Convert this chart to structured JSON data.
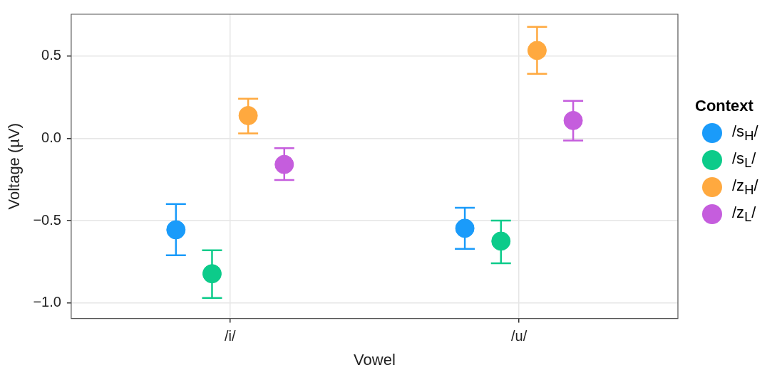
{
  "chart_data": {
    "type": "scatter",
    "xlabel": "Vowel",
    "ylabel": "Voltage (µV)",
    "legend_title": "Context",
    "categories": [
      "/i/",
      "/u/"
    ],
    "series": [
      {
        "name": "/s$_{H}$/",
        "color": "#1a9bfa",
        "values": [
          -0.556,
          -0.547
        ],
        "errors": [
          [
            -0.711,
            -0.4
          ],
          [
            -0.672,
            -0.422
          ]
        ]
      },
      {
        "name": "/s$_{L}$/",
        "color": "#0ccb8a",
        "values": [
          -0.823,
          -0.625
        ],
        "errors": [
          [
            -0.97,
            -0.681
          ],
          [
            -0.759,
            -0.5
          ]
        ]
      },
      {
        "name": "/z$_{H}$/",
        "color": "#ffa93f",
        "values": [
          0.138,
          0.534
        ],
        "errors": [
          [
            0.03,
            0.241
          ],
          [
            0.392,
            0.677
          ]
        ]
      },
      {
        "name": "/z$_{L}$/",
        "color": "#c55ddd",
        "values": [
          -0.159,
          0.108
        ],
        "errors": [
          [
            -0.254,
            -0.06
          ],
          [
            -0.013,
            0.228
          ]
        ]
      }
    ],
    "ylim": [
      -1.095,
      0.754
    ],
    "yticks": [
      {
        "value": -1,
        "label": "−1.0"
      },
      {
        "value": -0.5,
        "label": "−0.5"
      },
      {
        "value": 0,
        "label": "0.0"
      },
      {
        "value": 0.5,
        "label": "0.5"
      }
    ],
    "grid": true,
    "legend": "right",
    "marker": "circle"
  }
}
